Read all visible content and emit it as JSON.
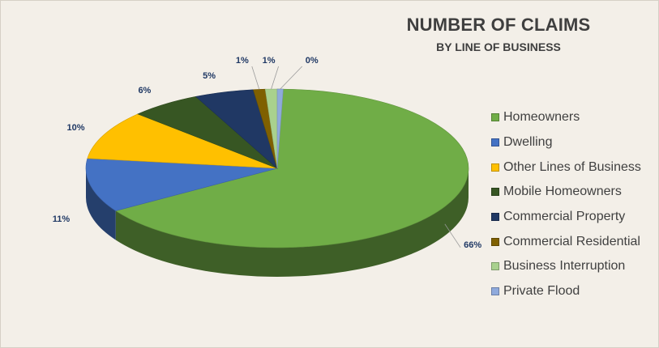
{
  "chart_data": {
    "type": "pie",
    "title": "NUMBER OF CLAIMS",
    "subtitle": "BY LINE OF BUSINESS",
    "categories": [
      "Homeowners",
      "Dwelling",
      "Other Lines of Business",
      "Mobile Homeowners",
      "Commercial Property",
      "Commercial Residential",
      "Business Interruption",
      "Private Flood"
    ],
    "values": [
      66,
      11,
      10,
      6,
      5,
      1,
      1,
      0
    ],
    "labels": [
      "66%",
      "11%",
      "10%",
      "6%",
      "5%",
      "1%",
      "1%",
      "0%"
    ],
    "colors": [
      "#70ad47",
      "#4472c4",
      "#ffc000",
      "#375623",
      "#203864",
      "#7f6000",
      "#a9d18e",
      "#8faadc"
    ],
    "legend_position": "right"
  }
}
